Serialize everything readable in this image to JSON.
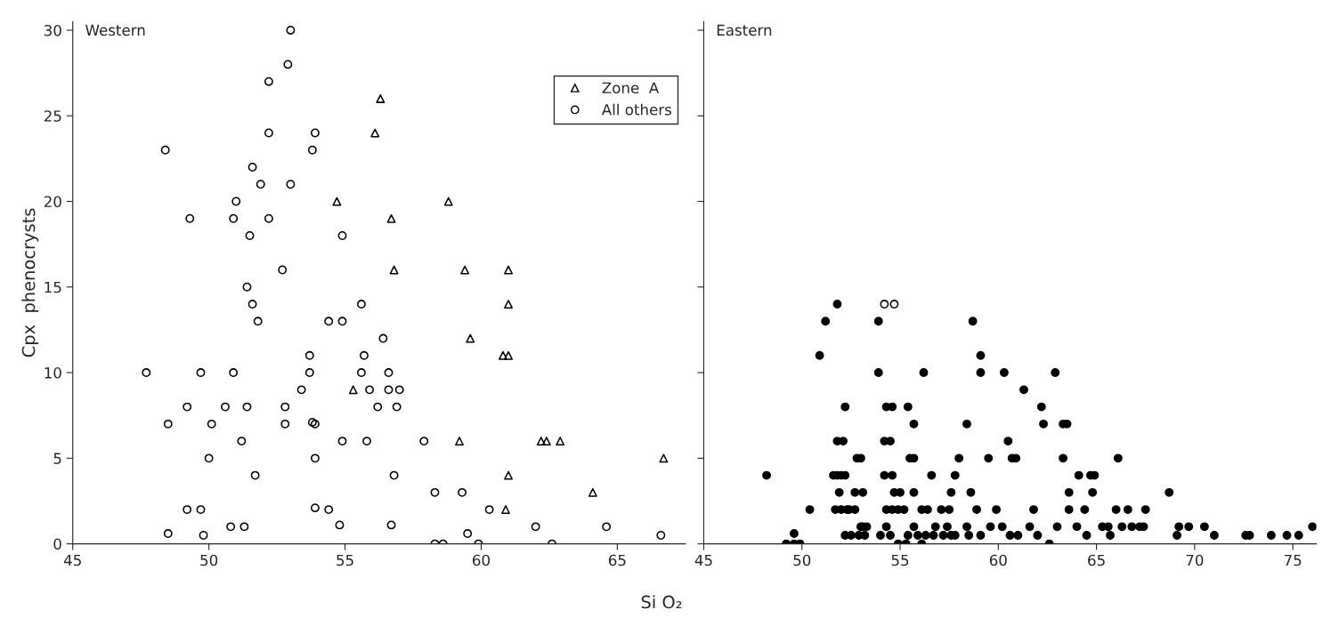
{
  "chart_data": [
    {
      "type": "scatter",
      "title": "Western",
      "xlabel": "Si O₂",
      "ylabel": "Cpx  phenocrysts",
      "xlim": [
        45,
        67.5
      ],
      "ylim": [
        0,
        30.5
      ],
      "xticks": [
        45,
        50,
        55,
        60,
        65
      ],
      "yticks": [
        0,
        5,
        10,
        15,
        20,
        25,
        30
      ],
      "grid": false,
      "legend": "top right",
      "series": [
        {
          "name": "Zone  A",
          "color": "#000000",
          "marker": "triangle",
          "x": [
            56.3,
            56.1,
            54.7,
            56.7,
            58.8,
            56.8,
            59.4,
            61.0,
            61.0,
            59.6,
            60.8,
            61.0,
            55.3,
            59.2,
            62.2,
            62.4,
            62.9,
            61.0,
            60.9,
            64.1,
            66.7
          ],
          "values": [
            26,
            24,
            20,
            19,
            20,
            16,
            16,
            16,
            14,
            12,
            11,
            11,
            9,
            6,
            6,
            6,
            6,
            4,
            2,
            3,
            5
          ]
        },
        {
          "name": "All others",
          "color": "#000000",
          "marker": "circle",
          "x": [
            48.4,
            49.3,
            51.0,
            50.9,
            51.5,
            51.6,
            51.9,
            52.2,
            52.2,
            52.2,
            52.9,
            53.0,
            53.0,
            53.8,
            53.9,
            54.9,
            52.7,
            51.4,
            51.6,
            51.8,
            54.4,
            54.9,
            55.6,
            56.4,
            55.7,
            53.7,
            53.7,
            55.6,
            56.6,
            47.7,
            49.7,
            50.9,
            53.4,
            55.9,
            56.6,
            57.0,
            49.2,
            50.6,
            51.4,
            52.8,
            56.2,
            56.9,
            48.5,
            50.1,
            52.8,
            53.8,
            53.9,
            51.2,
            54.9,
            55.8,
            57.9,
            50.0,
            53.9,
            51.7,
            56.8,
            49.2,
            49.7,
            53.9,
            54.4,
            50.8,
            51.3,
            54.8,
            56.7,
            48.5,
            49.8,
            58.3,
            59.3,
            60.3,
            62.0,
            64.6,
            66.6,
            58.3,
            58.6,
            59.5,
            59.9,
            62.6
          ],
          "values": [
            23,
            19,
            20,
            19,
            18,
            22,
            21,
            19,
            24,
            27,
            28,
            30,
            21,
            23,
            24,
            18,
            16,
            15,
            14,
            13,
            13,
            13,
            14,
            12,
            11,
            11,
            10,
            10,
            10,
            10,
            10,
            10,
            9,
            9,
            9,
            9,
            8,
            8,
            8,
            8,
            8,
            8,
            7,
            7,
            7,
            7.1,
            7,
            6,
            6,
            6,
            6,
            5,
            5,
            4,
            4,
            2,
            2,
            2.1,
            2,
            1,
            1,
            1.1,
            1.1,
            0.6,
            0.5,
            3,
            3,
            2,
            1,
            1,
            0.5,
            0,
            0,
            0.6,
            0,
            0
          ]
        }
      ]
    },
    {
      "type": "scatter",
      "title": "Eastern",
      "xlim": [
        45,
        76.2
      ],
      "ylim": [
        0,
        30.5
      ],
      "xticks": [
        45,
        50,
        55,
        60,
        65,
        70,
        75
      ],
      "yticks": [
        0,
        5,
        10,
        15,
        20,
        25,
        30
      ],
      "tick_labels": "x",
      "grid": false,
      "series": [
        {
          "color": "#000000",
          "marker": "circle",
          "x": [
            48.2,
            49.2,
            49.6,
            49.9,
            49.6,
            50.4,
            50.9,
            51.2,
            51.8,
            51.6,
            51.8,
            52.0,
            52.2,
            51.8,
            52.1,
            51.9,
            52.2,
            51.7,
            52.0,
            52.3,
            52.4,
            52.2,
            52.5,
            52.8,
            53.0,
            52.7,
            53.1,
            52.7,
            53.0,
            53.3,
            52.9,
            53.2,
            53.9,
            53.9,
            54.3,
            54.6,
            54.2,
            54.5,
            54.2,
            54.6,
            54.7,
            55.0,
            54.3,
            54.6,
            54.9,
            55.2,
            54.3,
            54.0,
            54.5,
            54.9,
            55.3,
            55.4,
            55.7,
            55.5,
            55.7,
            55.7,
            55.7,
            55.4,
            55.9,
            56.2,
            56.1,
            56.4,
            56.3,
            56.1,
            56.6,
            56.8,
            57.1,
            57.5,
            57.4,
            57.8,
            57.6,
            58.0,
            58.4,
            58.6,
            58.7,
            59.1,
            59.1,
            59.5,
            58.9,
            58.4,
            57.8,
            58.5,
            59.1,
            59.9,
            60.3,
            60.5,
            60.7,
            60.9,
            61.3,
            61.6,
            61.8,
            62.2,
            62.3,
            62.9,
            63.3,
            63.5,
            63.3,
            63.6,
            63.6,
            64.1,
            64.4,
            64.7,
            64.8,
            64.0,
            64.5,
            64.9,
            65.3,
            65.6,
            65.7,
            66.1,
            66.0,
            66.6,
            66.3,
            66.8,
            67.4,
            67.5,
            67.2,
            68.7,
            69.2,
            69.7,
            69.1,
            70.5,
            71.0,
            72.6,
            72.8,
            73.9,
            74.7,
            75.3,
            76.0,
            62.6,
            60.2,
            62.0,
            63.0,
            61.0,
            60.6,
            59.6,
            53.1,
            57.6,
            57.2,
            56.7
          ],
          "values": [
            4,
            0,
            0,
            0,
            0.6,
            2,
            11,
            13,
            14,
            4,
            4,
            4,
            4,
            6,
            6,
            3,
            8,
            2,
            2,
            2,
            2,
            0.5,
            0.5,
            5,
            5,
            3,
            3,
            2,
            1,
            1,
            0.5,
            0.5,
            13,
            10,
            8,
            8,
            6,
            6,
            4,
            4,
            3,
            3,
            2,
            2,
            2,
            2,
            1,
            0.5,
            0.5,
            0,
            0,
            8,
            7,
            5,
            5,
            3,
            1,
            0.5,
            0.5,
            10,
            2,
            2,
            0.5,
            0,
            4,
            1,
            2,
            2,
            1,
            4,
            3,
            5,
            7,
            3,
            13,
            11,
            10,
            5,
            2,
            1,
            0.5,
            0.5,
            0.5,
            2,
            10,
            6,
            5,
            5,
            9,
            1,
            2,
            8,
            7,
            10,
            7,
            7,
            5,
            3,
            2,
            4,
            2,
            4,
            3,
            1,
            0.5,
            4,
            1,
            1,
            0.5,
            5,
            2,
            2,
            1,
            1,
            1,
            2,
            1,
            3,
            1,
            1,
            0.5,
            1,
            0.5,
            0.5,
            0.5,
            0.5,
            0.5,
            0.5,
            1,
            0,
            1,
            0.5,
            1,
            0.5,
            0.5,
            1,
            1,
            0.5,
            0.5,
            0.5
          ]
        },
        {
          "color": "#000000",
          "marker": "circle",
          "x": [
            54.2,
            54.7
          ],
          "values": [
            14,
            14
          ]
        }
      ]
    }
  ]
}
